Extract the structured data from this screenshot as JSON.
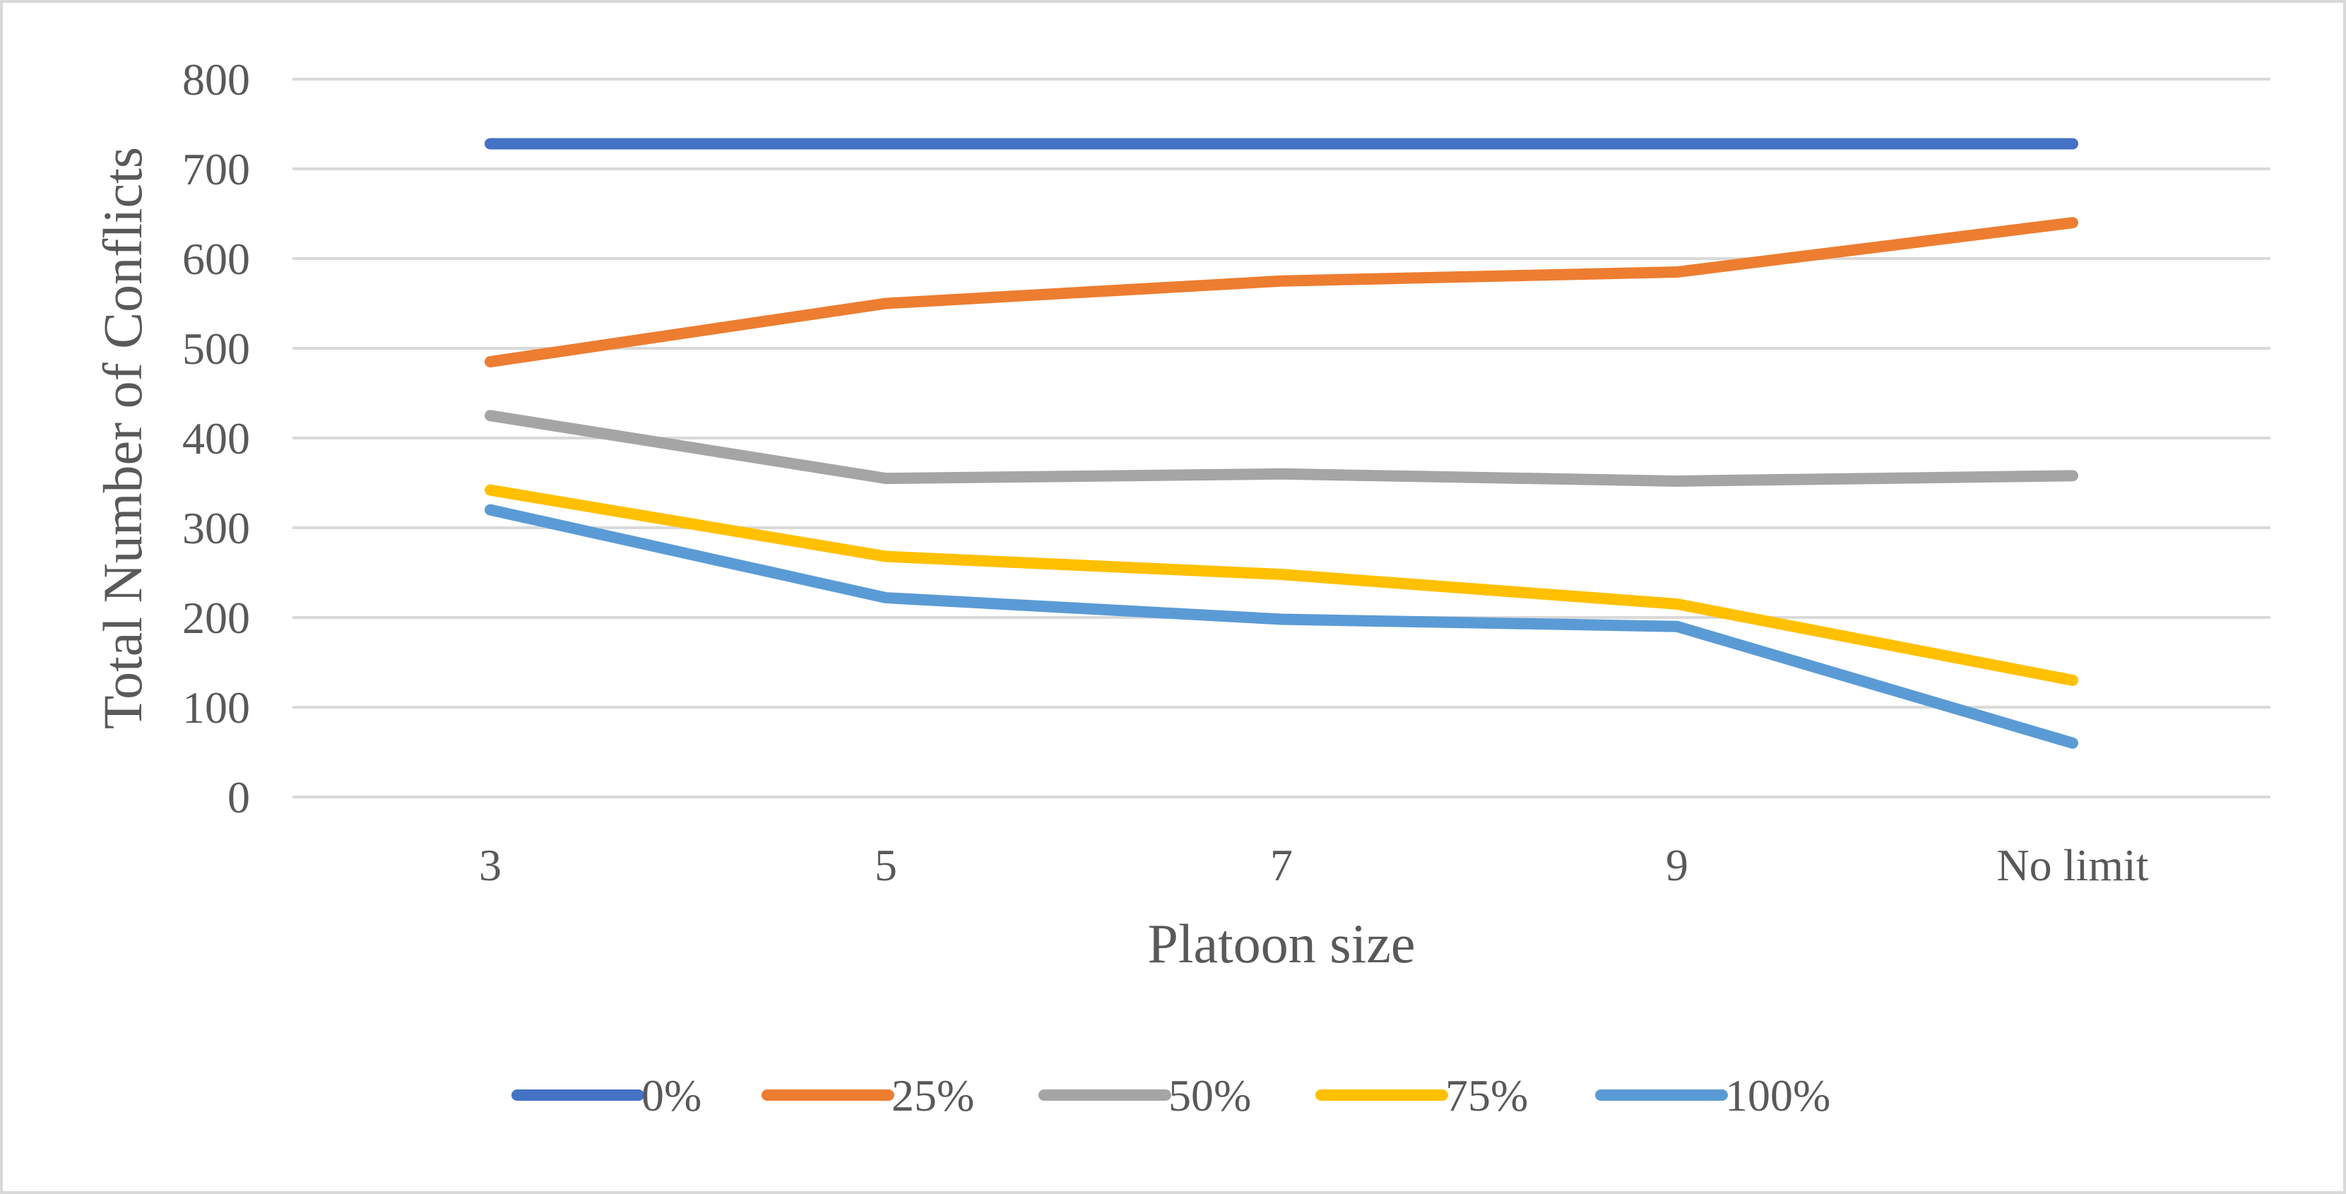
{
  "chart_data": {
    "type": "line",
    "title": "",
    "xlabel": "Platoon size",
    "ylabel": "Total Number of Conflicts",
    "categories": [
      "3",
      "5",
      "7",
      "9",
      "No limit"
    ],
    "ylim": [
      0,
      800
    ],
    "yticks": [
      0,
      100,
      200,
      300,
      400,
      500,
      600,
      700,
      800
    ],
    "grid": true,
    "legend_position": "bottom",
    "series": [
      {
        "name": "0%",
        "color": "#4472c4",
        "values": [
          728,
          728,
          728,
          728,
          728
        ]
      },
      {
        "name": "25%",
        "color": "#ed7d31",
        "values": [
          485,
          550,
          575,
          585,
          640
        ]
      },
      {
        "name": "50%",
        "color": "#a5a5a5",
        "values": [
          425,
          355,
          360,
          352,
          358
        ]
      },
      {
        "name": "75%",
        "color": "#ffc000",
        "values": [
          342,
          268,
          248,
          215,
          130
        ]
      },
      {
        "name": "100%",
        "color": "#5b9bd5",
        "values": [
          320,
          222,
          198,
          190,
          60
        ]
      }
    ]
  }
}
